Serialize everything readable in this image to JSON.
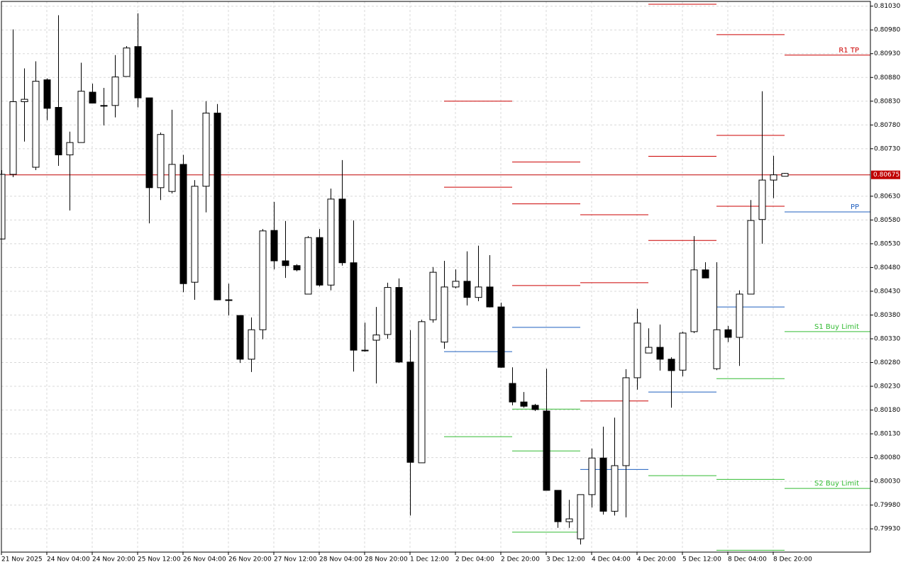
{
  "chart_data": {
    "type": "candlestick",
    "categories": [
      "21 Nov 2025",
      null,
      null,
      null,
      "24 Nov 04:00",
      null,
      null,
      null,
      "24 Nov 20:00",
      null,
      null,
      null,
      "25 Nov 12:00",
      null,
      null,
      null,
      "26 Nov 04:00",
      null,
      null,
      null,
      "26 Nov 20:00",
      null,
      null,
      null,
      "27 Nov 12:00",
      null,
      null,
      null,
      "28 Nov 04:00",
      null,
      null,
      null,
      "28 Nov 20:00",
      null,
      null,
      null,
      "1 Dec 12:00",
      null,
      null,
      null,
      "2 Dec 04:00",
      null,
      null,
      null,
      "2 Dec 20:00",
      null,
      null,
      null,
      "3 Dec 12:00",
      null,
      null,
      null,
      "4 Dec 04:00",
      null,
      null,
      null,
      "4 Dec 20:00",
      null,
      null,
      null,
      "5 Dec 12:00",
      null,
      null,
      null,
      "8 Dec 04:00",
      null,
      null,
      null,
      "8 Dec 20:00",
      null
    ],
    "open": [
      0.8054,
      0.80676,
      0.80829,
      0.80691,
      0.80875,
      0.80817,
      0.80717,
      0.80743,
      0.80849,
      0.80821,
      0.80821,
      0.80882,
      0.80945,
      0.80837,
      0.80648,
      0.8064,
      0.80697,
      0.80449,
      0.80651,
      0.80805,
      0.80412,
      0.80379,
      0.80287,
      0.80349,
      0.80558,
      0.80494,
      0.80484,
      0.80424,
      0.80543,
      0.80443,
      0.80624,
      0.8049,
      0.80306,
      0.80327,
      0.80339,
      0.80438,
      0.80281,
      0.80069,
      0.8037,
      0.80323,
      0.80439,
      0.80451,
      0.80417,
      0.80439,
      0.80397,
      0.80236,
      0.80197,
      0.8019,
      0.80178,
      0.80011,
      0.79945,
      0.79909,
      0.80002,
      0.80079,
      0.79967,
      0.80063,
      0.80248,
      0.803,
      0.80312,
      0.80287,
      0.80264,
      0.80345,
      0.80475,
      0.80267,
      0.80349,
      0.80333,
      0.80424,
      0.80581,
      0.80664,
      0.80672
    ],
    "high": [
      0.80685,
      0.80981,
      0.80899,
      0.80914,
      0.80878,
      0.81011,
      0.80766,
      0.80911,
      0.80867,
      0.80858,
      0.80927,
      0.80946,
      0.81015,
      0.80837,
      0.80764,
      0.80812,
      0.80717,
      0.80664,
      0.8083,
      0.80824,
      0.80446,
      0.80379,
      0.80375,
      0.80561,
      0.80618,
      0.80578,
      0.80487,
      0.80546,
      0.80561,
      0.80646,
      0.80706,
      0.80579,
      0.80364,
      0.80397,
      0.80448,
      0.80457,
      0.80348,
      0.8037,
      0.80481,
      0.80494,
      0.80476,
      0.80514,
      0.80526,
      0.80506,
      0.80406,
      0.8027,
      0.80218,
      0.80193,
      0.80267,
      0.80011,
      0.79991,
      0.80002,
      0.80099,
      0.80145,
      0.80164,
      0.80266,
      0.80393,
      0.80352,
      0.8036,
      0.80291,
      0.80345,
      0.80546,
      0.80491,
      0.80491,
      0.80357,
      0.80432,
      0.80622,
      0.80851,
      0.80715,
      0.80679
    ],
    "low": [
      0.8054,
      0.8067,
      0.80745,
      0.80685,
      0.8079,
      0.80694,
      0.806,
      0.80743,
      0.80826,
      0.80779,
      0.80796,
      0.80882,
      0.80817,
      0.80573,
      0.80622,
      0.80636,
      0.80428,
      0.80412,
      0.80596,
      0.80411,
      0.80379,
      0.80279,
      0.8026,
      0.80329,
      0.80476,
      0.80458,
      0.80472,
      0.80424,
      0.8044,
      0.80432,
      0.80484,
      0.80261,
      0.80303,
      0.80236,
      0.8033,
      0.80279,
      0.79958,
      0.80069,
      0.80364,
      0.80309,
      0.80436,
      0.804,
      0.80409,
      0.80396,
      0.80269,
      0.8019,
      0.80185,
      0.80178,
      0.80011,
      0.79932,
      0.79932,
      0.79897,
      0.79975,
      0.7996,
      0.79958,
      0.79954,
      0.80223,
      0.803,
      0.80263,
      0.80185,
      0.80251,
      0.80342,
      0.80458,
      0.80264,
      0.80323,
      0.80273,
      0.80424,
      0.8053,
      0.80626,
      0.80672
    ],
    "close": [
      0.80676,
      0.80829,
      0.80834,
      0.80872,
      0.80815,
      0.80717,
      0.80743,
      0.80851,
      0.80826,
      0.80821,
      0.80881,
      0.80942,
      0.80837,
      0.80648,
      0.8076,
      0.80697,
      0.80446,
      0.80651,
      0.80805,
      0.80412,
      0.80411,
      0.80287,
      0.80349,
      0.80557,
      0.80494,
      0.80484,
      0.80475,
      0.80543,
      0.80443,
      0.80624,
      0.8049,
      0.80306,
      0.80306,
      0.80338,
      0.80438,
      0.80281,
      0.8007,
      0.80366,
      0.8047,
      0.80439,
      0.80451,
      0.80417,
      0.80439,
      0.80397,
      0.8027,
      0.80197,
      0.80188,
      0.80181,
      0.80011,
      0.79945,
      0.79951,
      0.80002,
      0.80079,
      0.79967,
      0.80063,
      0.80248,
      0.80363,
      0.80312,
      0.80287,
      0.80263,
      0.80342,
      0.80475,
      0.80458,
      0.80349,
      0.80333,
      0.80424,
      0.80579,
      0.80664,
      0.80675,
      0.80678
    ],
    "ylim": [
      0.79881,
      0.8104
    ],
    "yticks": [
      {
        "value": 0.8103,
        "label": "0.81030"
      },
      {
        "value": 0.8098,
        "label": "0.80980"
      },
      {
        "value": 0.8093,
        "label": "0.80930"
      },
      {
        "value": 0.8088,
        "label": "0.80880"
      },
      {
        "value": 0.8083,
        "label": "0.80830"
      },
      {
        "value": 0.8078,
        "label": "0.80780"
      },
      {
        "value": 0.8073,
        "label": "0.80730"
      },
      {
        "value": 0.8063,
        "label": "0.80630"
      },
      {
        "value": 0.8058,
        "label": "0.80580"
      },
      {
        "value": 0.8053,
        "label": "0.80530"
      },
      {
        "value": 0.8048,
        "label": "0.80480"
      },
      {
        "value": 0.8043,
        "label": "0.80430"
      },
      {
        "value": 0.8038,
        "label": "0.80380"
      },
      {
        "value": 0.8033,
        "label": "0.80330"
      },
      {
        "value": 0.8028,
        "label": "0.80280"
      },
      {
        "value": 0.8023,
        "label": "0.80230"
      },
      {
        "value": 0.8018,
        "label": "0.80180"
      },
      {
        "value": 0.8013,
        "label": "0.80130"
      },
      {
        "value": 0.8008,
        "label": "0.80080"
      },
      {
        "value": 0.8003,
        "label": "0.80030"
      },
      {
        "value": 0.7998,
        "label": "0.79980"
      },
      {
        "value": 0.7993,
        "label": "0.79930"
      }
    ],
    "grid": true,
    "up_color": "#ffffff",
    "down_color": "#000000",
    "current_price": {
      "value": 0.80675,
      "label": "0.80675",
      "color": "#c00000"
    },
    "pivot_days": [
      {
        "start": 39,
        "lines": [
          {
            "value": 0.8083,
            "color": "#cc0000"
          },
          {
            "value": 0.80649,
            "color": "#cc0000"
          },
          {
            "value": 0.80303,
            "color": "#1f5fbf"
          },
          {
            "value": 0.80124,
            "color": "#33bb33"
          }
        ]
      },
      {
        "start": 45,
        "lines": [
          {
            "value": 0.80702,
            "color": "#cc0000"
          },
          {
            "value": 0.80614,
            "color": "#cc0000"
          },
          {
            "value": 0.80442,
            "color": "#cc0000"
          },
          {
            "value": 0.80354,
            "color": "#1f5fbf"
          },
          {
            "value": 0.80182,
            "color": "#33bb33"
          },
          {
            "value": 0.80094,
            "color": "#33bb33"
          },
          {
            "value": 0.79923,
            "color": "#33bb33"
          }
        ]
      },
      {
        "start": 51,
        "lines": [
          {
            "value": 0.80591,
            "color": "#cc0000"
          },
          {
            "value": 0.80448,
            "color": "#cc0000"
          },
          {
            "value": 0.80199,
            "color": "#cc0000"
          },
          {
            "value": 0.80055,
            "color": "#1f5fbf"
          }
        ]
      },
      {
        "start": 57,
        "lines": [
          {
            "value": 0.81034,
            "color": "#cc0000"
          },
          {
            "value": 0.80714,
            "color": "#cc0000"
          },
          {
            "value": 0.80537,
            "color": "#cc0000"
          },
          {
            "value": 0.80218,
            "color": "#1f5fbf"
          },
          {
            "value": 0.80042,
            "color": "#33bb33"
          }
        ]
      },
      {
        "start": 63,
        "lines": [
          {
            "value": 0.8097,
            "color": "#cc0000"
          },
          {
            "value": 0.80758,
            "color": "#cc0000"
          },
          {
            "value": 0.80609,
            "color": "#cc0000"
          },
          {
            "value": 0.80397,
            "color": "#1f5fbf"
          },
          {
            "value": 0.80246,
            "color": "#33bb33"
          },
          {
            "value": 0.80034,
            "color": "#33bb33"
          },
          {
            "value": 0.79885,
            "color": "#33bb33"
          }
        ]
      },
      {
        "start": 69,
        "lines": [
          {
            "value": 0.80927,
            "color": "#cc0000",
            "label": "R1 TP"
          },
          {
            "value": 0.80597,
            "color": "#1f5fbf",
            "label": "PP"
          },
          {
            "value": 0.80345,
            "color": "#33bb33",
            "label": "S1 Buy Limit"
          },
          {
            "value": 0.80015,
            "color": "#33bb33",
            "label": "S2 Buy Limit"
          }
        ]
      }
    ]
  }
}
